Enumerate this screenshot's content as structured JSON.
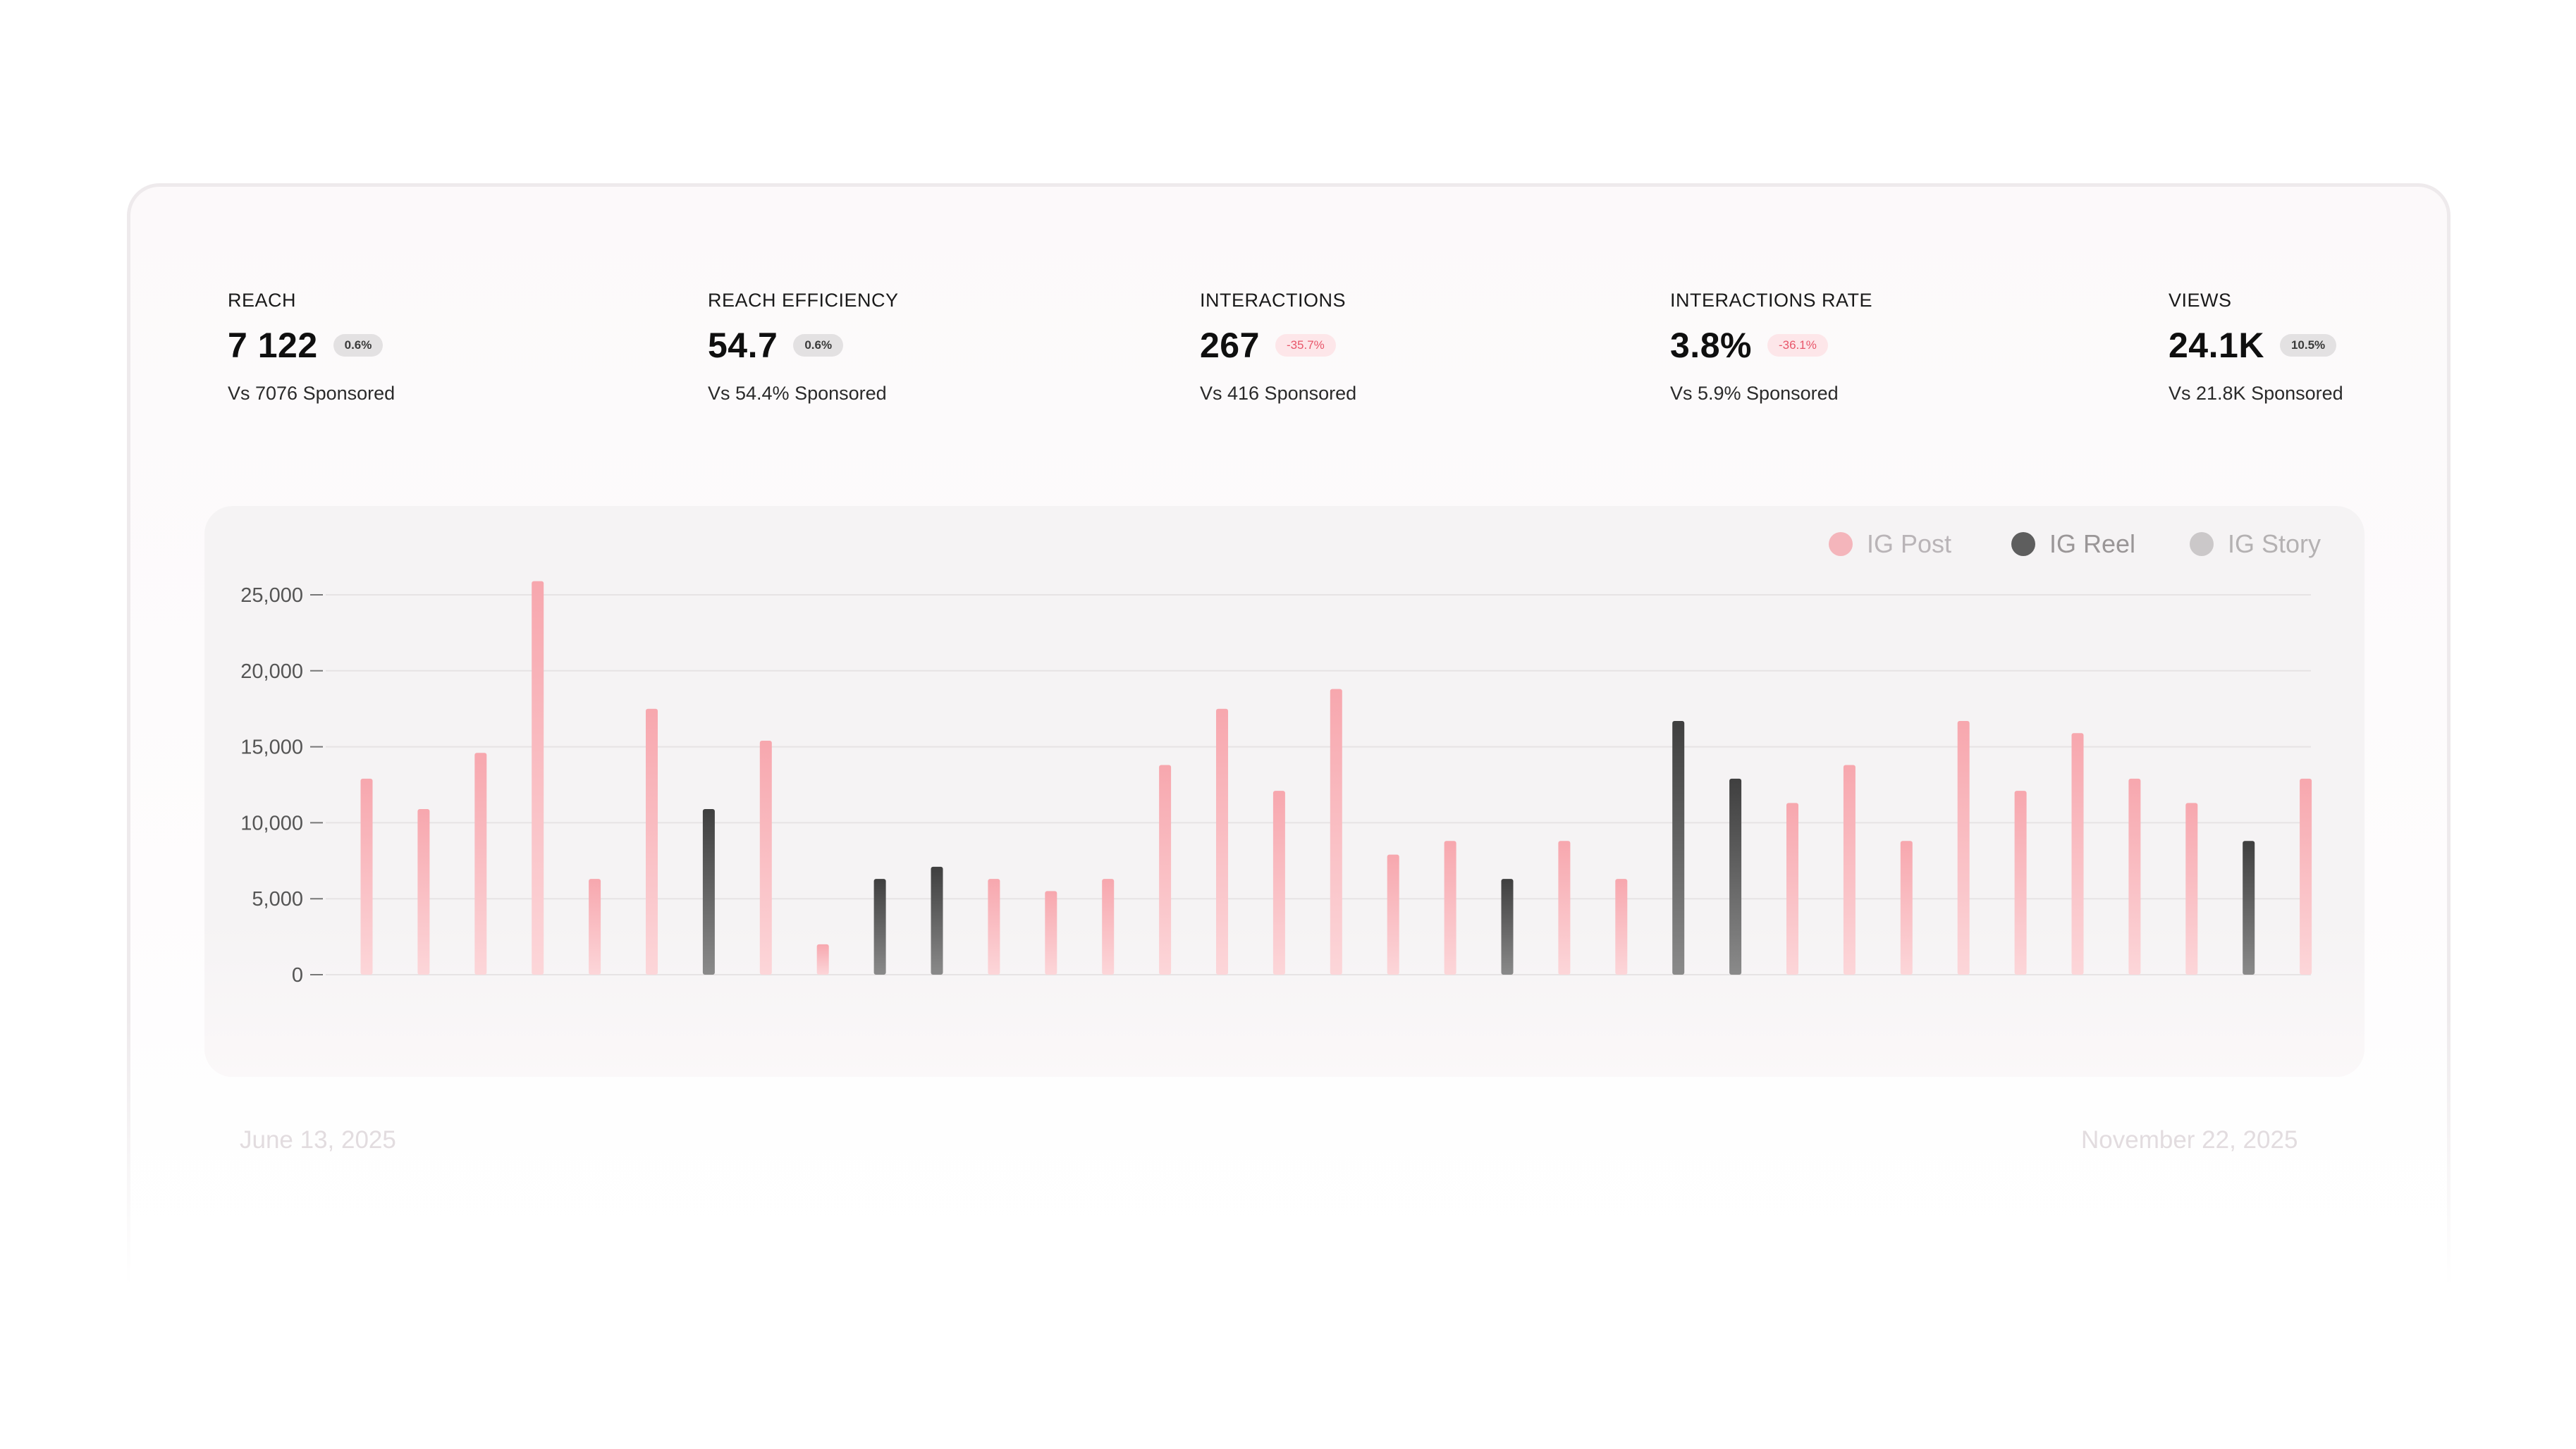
{
  "kpis": [
    {
      "label": "REACH",
      "value": "7 122",
      "badge": "0.6%",
      "badge_negative": false,
      "sub": "Vs 7076 Sponsored"
    },
    {
      "label": "REACH EFFICIENCY",
      "value": "54.7",
      "badge": "0.6%",
      "badge_negative": false,
      "sub": "Vs 54.4% Sponsored"
    },
    {
      "label": "INTERACTIONS",
      "value": "267",
      "badge": "-35.7%",
      "badge_negative": true,
      "sub": "Vs 416 Sponsored"
    },
    {
      "label": "INTERACTIONS RATE",
      "value": "3.8%",
      "badge": "-36.1%",
      "badge_negative": true,
      "sub": "Vs 5.9% Sponsored"
    },
    {
      "label": "VIEWS",
      "value": "24.1K",
      "badge": "10.5%",
      "badge_negative": false,
      "sub": "Vs 21.8K Sponsored"
    }
  ],
  "legend": [
    {
      "name": "IG Post",
      "color": "#f4b5bb",
      "text_color": "#b9b4b7"
    },
    {
      "name": "IG Reel",
      "color": "#5e5e5e",
      "text_color": "#9a9697"
    },
    {
      "name": "IG Story",
      "color": "#cbc8c9",
      "text_color": "#b4b1b2"
    }
  ],
  "dates": {
    "start": "June 13, 2025",
    "end": "November 22, 2025"
  },
  "chart_data": {
    "type": "bar",
    "ylim": [
      0,
      25000
    ],
    "yticks": [
      0,
      5000,
      10000,
      15000,
      20000,
      25000
    ],
    "ytick_labels": [
      "0",
      "5,000",
      "10,000",
      "15,000",
      "20,000",
      "25,000"
    ],
    "x_range": [
      "June 13, 2025",
      "November 22, 2025"
    ],
    "grid": true,
    "legend_position": "top-right",
    "series": [
      {
        "name": "IG Post",
        "color": "#f6a9b0"
      },
      {
        "name": "IG Reel",
        "color": "#4a4a4a"
      },
      {
        "name": "IG Story",
        "color": "#c8c5c6"
      }
    ],
    "bars": [
      {
        "type": "IG Post",
        "value": 12900
      },
      {
        "type": "IG Post",
        "value": 10900
      },
      {
        "type": "IG Post",
        "value": 14600
      },
      {
        "type": "IG Post",
        "value": 25900
      },
      {
        "type": "IG Post",
        "value": 6300
      },
      {
        "type": "IG Post",
        "value": 17500
      },
      {
        "type": "IG Reel",
        "value": 10900
      },
      {
        "type": "IG Post",
        "value": 15400
      },
      {
        "type": "IG Post",
        "value": 2000
      },
      {
        "type": "IG Reel",
        "value": 6300
      },
      {
        "type": "IG Reel",
        "value": 7100
      },
      {
        "type": "IG Post",
        "value": 6300
      },
      {
        "type": "IG Post",
        "value": 5500
      },
      {
        "type": "IG Post",
        "value": 6300
      },
      {
        "type": "IG Post",
        "value": 13800
      },
      {
        "type": "IG Post",
        "value": 17500
      },
      {
        "type": "IG Post",
        "value": 12100
      },
      {
        "type": "IG Post",
        "value": 18800
      },
      {
        "type": "IG Post",
        "value": 7900
      },
      {
        "type": "IG Post",
        "value": 8800
      },
      {
        "type": "IG Reel",
        "value": 6300
      },
      {
        "type": "IG Post",
        "value": 8800
      },
      {
        "type": "IG Post",
        "value": 6300
      },
      {
        "type": "IG Reel",
        "value": 16700
      },
      {
        "type": "IG Reel",
        "value": 12900
      },
      {
        "type": "IG Post",
        "value": 11300
      },
      {
        "type": "IG Post",
        "value": 13800
      },
      {
        "type": "IG Post",
        "value": 8800
      },
      {
        "type": "IG Post",
        "value": 16700
      },
      {
        "type": "IG Post",
        "value": 12100
      },
      {
        "type": "IG Post",
        "value": 15900
      },
      {
        "type": "IG Post",
        "value": 12900
      },
      {
        "type": "IG Post",
        "value": 11300
      },
      {
        "type": "IG Reel",
        "value": 8800
      },
      {
        "type": "IG Post",
        "value": 12900
      }
    ]
  }
}
